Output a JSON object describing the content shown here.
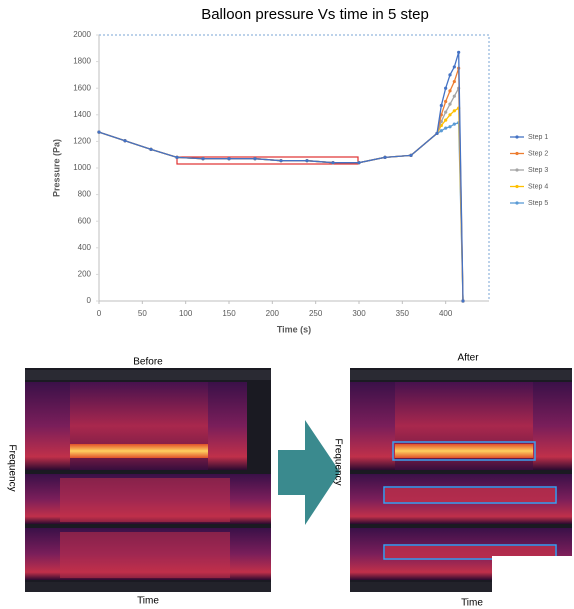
{
  "chart_data": {
    "type": "line",
    "title": "Balloon pressure Vs time in 5 step",
    "x_label": "Time (s)",
    "y_label": "Pressure (Pa)",
    "x": [
      0,
      30,
      60,
      90,
      120,
      150,
      180,
      210,
      240,
      270,
      300,
      330,
      360,
      390,
      395,
      400,
      405,
      410,
      415,
      420
    ],
    "series": [
      {
        "name": "Step 1",
        "color": "#4472c4",
        "values": [
          1270,
          1205,
          1140,
          1080,
          1070,
          1070,
          1070,
          1055,
          1055,
          1040,
          1040,
          1080,
          1095,
          1260,
          1470,
          1600,
          1700,
          1760,
          1870,
          0
        ]
      },
      {
        "name": "Step 2",
        "color": "#ed7d31",
        "values": [
          1270,
          1205,
          1140,
          1080,
          1070,
          1070,
          1070,
          1055,
          1055,
          1040,
          1040,
          1080,
          1095,
          1260,
          1400,
          1500,
          1580,
          1650,
          1750,
          0
        ]
      },
      {
        "name": "Step 3",
        "color": "#a5a5a5",
        "values": [
          1270,
          1205,
          1140,
          1080,
          1070,
          1070,
          1070,
          1055,
          1055,
          1040,
          1040,
          1080,
          1095,
          1260,
          1350,
          1420,
          1480,
          1540,
          1600,
          0
        ]
      },
      {
        "name": "Step 4",
        "color": "#ffc000",
        "values": [
          1270,
          1205,
          1140,
          1080,
          1070,
          1070,
          1070,
          1055,
          1055,
          1040,
          1040,
          1080,
          1095,
          1260,
          1320,
          1360,
          1400,
          1430,
          1450,
          0
        ]
      },
      {
        "name": "Step 5",
        "color": "#5b9bd5",
        "values": [
          1270,
          1205,
          1140,
          1080,
          1070,
          1070,
          1070,
          1055,
          1055,
          1040,
          1040,
          1080,
          1095,
          1260,
          1280,
          1300,
          1310,
          1330,
          1340,
          0
        ]
      }
    ],
    "xlim": [
      0,
      450
    ],
    "xticks": [
      0,
      50,
      100,
      150,
      200,
      250,
      300,
      350,
      400
    ],
    "ylim": [
      0,
      2000
    ],
    "yticks": [
      0,
      200,
      400,
      600,
      800,
      1000,
      1200,
      1400,
      1600,
      1800,
      2000
    ],
    "grid": false,
    "legend": "right"
  },
  "panels": [
    {
      "title": "Before",
      "y_label": "Frequency",
      "x_label": "Time"
    },
    {
      "title": "After",
      "y_label": "Frequency",
      "x_label": "Time"
    }
  ]
}
